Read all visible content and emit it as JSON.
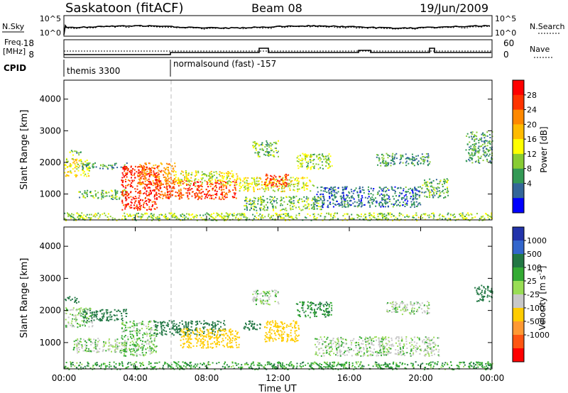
{
  "header": {
    "station": "Saskatoon (fitACF)",
    "beam": "Beam 08",
    "date": "19/Jun/2009"
  },
  "top_panel": {
    "nsky_label": "N.Sky",
    "nsky_ticks": [
      "10^5",
      "10^0"
    ],
    "nsearch_label": "N.Search",
    "nsearch_ticks": [
      "10^5",
      "10^0"
    ],
    "freq_label_1": "Freq.",
    "freq_label_2": "[MHz]",
    "freq_ticks": [
      "18",
      "8"
    ],
    "nave_label": "Nave",
    "nave_ticks": [
      "60",
      "0"
    ],
    "cpid_label": "CPID",
    "cpid_segments": [
      {
        "start_hour": 0,
        "name": "themis 3300"
      },
      {
        "start_hour": 6,
        "name": "normalsound (fast) -157"
      }
    ]
  },
  "chart_data": [
    {
      "type": "heatmap",
      "title": "",
      "xlabel": "",
      "ylabel": "Slant Range [km]",
      "xlim": [
        0,
        24
      ],
      "ylim": [
        180,
        4600
      ],
      "yticks": [
        "1000",
        "2000",
        "3000",
        "4000"
      ],
      "colorbar": {
        "label": "Power [dB]",
        "ticks": [
          "28",
          "24",
          "20",
          "16",
          "12",
          "8",
          "4"
        ],
        "colors": [
          "#ff0000",
          "#ff3300",
          "#ff8800",
          "#ffbb00",
          "#ffff00",
          "#88cc33",
          "#339955",
          "#336699",
          "#0000ff"
        ]
      },
      "regions": [
        {
          "t0": 0.0,
          "t1": 1.4,
          "r0": 1550,
          "r1": 2150,
          "level": 16
        },
        {
          "t0": 0.2,
          "t1": 1.0,
          "r0": 2250,
          "r1": 2400,
          "level": 10
        },
        {
          "t0": 1.0,
          "t1": 3.5,
          "r0": 1800,
          "r1": 2000,
          "level": 8
        },
        {
          "t0": 0.8,
          "t1": 3.5,
          "r0": 850,
          "r1": 1150,
          "level": 10
        },
        {
          "t0": 3.2,
          "t1": 5.2,
          "r0": 500,
          "r1": 1900,
          "level": 28
        },
        {
          "t0": 4.2,
          "t1": 6.2,
          "r0": 1300,
          "r1": 2000,
          "level": 22
        },
        {
          "t0": 5.0,
          "t1": 9.7,
          "r0": 850,
          "r1": 1450,
          "level": 26
        },
        {
          "t0": 6.2,
          "t1": 9.7,
          "r0": 1300,
          "r1": 1750,
          "level": 14
        },
        {
          "t0": 9.8,
          "t1": 14.0,
          "r0": 1100,
          "r1": 1550,
          "level": 15
        },
        {
          "t0": 11.2,
          "t1": 12.6,
          "r0": 1250,
          "r1": 1650,
          "level": 27
        },
        {
          "t0": 10.0,
          "t1": 14.5,
          "r0": 500,
          "r1": 950,
          "level": 10
        },
        {
          "t0": 10.5,
          "t1": 12.0,
          "r0": 2200,
          "r1": 2700,
          "level": 10
        },
        {
          "t0": 13.0,
          "t1": 15.0,
          "r0": 1800,
          "r1": 2300,
          "level": 12
        },
        {
          "t0": 14.0,
          "t1": 20.0,
          "r0": 600,
          "r1": 1250,
          "level": 5
        },
        {
          "t0": 17.5,
          "t1": 20.5,
          "r0": 1900,
          "r1": 2300,
          "level": 7
        },
        {
          "t0": 20.0,
          "t1": 21.5,
          "r0": 900,
          "r1": 1500,
          "level": 9
        },
        {
          "t0": 22.5,
          "t1": 24.0,
          "r0": 2000,
          "r1": 3000,
          "level": 8
        },
        {
          "t0": 0.0,
          "t1": 24.0,
          "r0": 180,
          "r1": 420,
          "level": 12
        }
      ]
    },
    {
      "type": "heatmap",
      "title": "",
      "xlabel": "Time UT",
      "ylabel": "Slant Range [km]",
      "xlim": [
        0,
        24
      ],
      "ylim": [
        180,
        4600
      ],
      "xticks": [
        "00:00",
        "04:00",
        "08:00",
        "12:00",
        "16:00",
        "20:00",
        "00:00"
      ],
      "yticks": [
        "1000",
        "2000",
        "3000",
        "4000"
      ],
      "colorbar": {
        "label": "Velocity [m s^-1]",
        "ticks": [
          "1000",
          "500",
          "100",
          "25",
          "-25",
          "-100",
          "-500",
          "-1000"
        ],
        "colors": [
          "#2233aa",
          "#3366cc",
          "#227744",
          "#33aa33",
          "#99dd55",
          "#c8c8c8",
          "#ffcc00",
          "#ff9933",
          "#ff5511",
          "#ff0000"
        ]
      },
      "regions": [
        {
          "t0": 0.0,
          "t1": 1.6,
          "r0": 1500,
          "r1": 2100,
          "level": -10
        },
        {
          "t0": 0.0,
          "t1": 0.8,
          "r0": 2250,
          "r1": 2450,
          "level": 120
        },
        {
          "t0": 1.0,
          "t1": 3.5,
          "r0": 1700,
          "r1": 2050,
          "level": 110
        },
        {
          "t0": 0.5,
          "t1": 3.5,
          "r0": 700,
          "r1": 1150,
          "level": -10
        },
        {
          "t0": 3.2,
          "t1": 5.2,
          "r0": 600,
          "r1": 1700,
          "level": 10
        },
        {
          "t0": 5.0,
          "t1": 9.0,
          "r0": 1250,
          "r1": 1700,
          "level": 120
        },
        {
          "t0": 6.5,
          "t1": 9.8,
          "r0": 850,
          "r1": 1450,
          "level": -180
        },
        {
          "t0": 10.0,
          "t1": 11.0,
          "r0": 1400,
          "r1": 1700,
          "level": 120
        },
        {
          "t0": 11.2,
          "t1": 13.2,
          "r0": 1050,
          "r1": 1700,
          "level": -220
        },
        {
          "t0": 10.5,
          "t1": 12.0,
          "r0": 2200,
          "r1": 2650,
          "level": -10
        },
        {
          "t0": 13.0,
          "t1": 15.0,
          "r0": 1800,
          "r1": 2300,
          "level": 60
        },
        {
          "t0": 14.0,
          "t1": 21.0,
          "r0": 600,
          "r1": 1200,
          "level": -10
        },
        {
          "t0": 18.0,
          "t1": 20.5,
          "r0": 1900,
          "r1": 2300,
          "level": -10
        },
        {
          "t0": 23.0,
          "t1": 24.0,
          "r0": 2300,
          "r1": 2800,
          "level": 120
        },
        {
          "t0": 0.0,
          "t1": 24.0,
          "r0": 180,
          "r1": 420,
          "level": 40
        }
      ]
    }
  ]
}
